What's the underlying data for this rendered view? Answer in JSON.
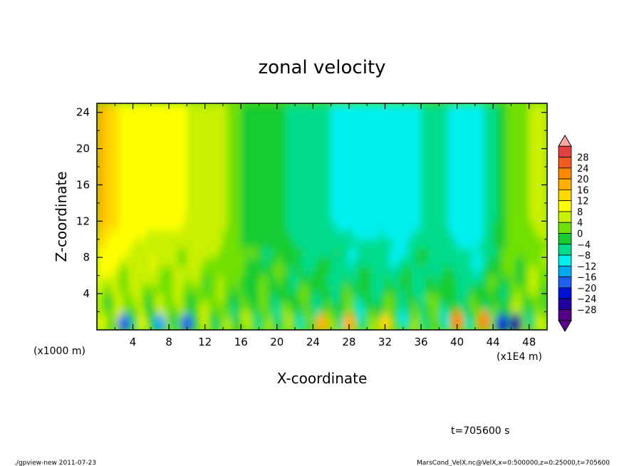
{
  "chart_data": {
    "type": "heatmap",
    "title": "zonal velocity",
    "xlabel": "X-coordinate",
    "ylabel": "Z-coordinate",
    "x_unit_left": "(x1000 m)",
    "x_unit_right": "(x1E4 m)",
    "xlim": [
      0,
      50
    ],
    "ylim": [
      0,
      25
    ],
    "x_ticks": [
      "4",
      "8",
      "12",
      "16",
      "20",
      "24",
      "28",
      "32",
      "36",
      "40",
      "44",
      "48"
    ],
    "y_ticks": [
      "4",
      "8",
      "12",
      "16",
      "20",
      "24"
    ],
    "colorbar": {
      "labels": [
        "28",
        "24",
        "20",
        "16",
        "12",
        "8",
        "4",
        "0",
        "−4",
        "−8",
        "−12",
        "−16",
        "−20",
        "−24",
        "−28"
      ],
      "colors": [
        "#e04040",
        "#f25a20",
        "#ff8800",
        "#ffb000",
        "#ffd800",
        "#ffff00",
        "#c8f000",
        "#70e000",
        "#18cc30",
        "#00dc8c",
        "#00f0f0",
        "#00a8f0",
        "#2060f0",
        "#0010d8",
        "#2000a0",
        "#550088"
      ],
      "top_color": "#ffa8a8",
      "bottom_color": "#5a0090"
    },
    "field_profile": {
      "x": [
        0,
        2,
        4,
        6,
        8,
        10,
        12,
        14,
        16,
        18,
        20,
        22,
        24,
        26,
        28,
        30,
        32,
        34,
        36,
        38,
        40,
        42,
        44,
        46,
        48,
        50
      ],
      "upper_level_velocity": [
        18,
        13,
        10,
        9,
        9,
        8,
        6,
        5,
        0,
        -2,
        -3,
        -5,
        -6,
        -8,
        -9,
        -10,
        -9,
        -11,
        -8,
        -6,
        -10,
        -12,
        -5,
        2,
        4,
        5
      ],
      "near_surface_extremes": [
        {
          "x": 3,
          "z": 0.7,
          "value": -16
        },
        {
          "x": 7,
          "z": 0.7,
          "value": -12
        },
        {
          "x": 10,
          "z": 0.7,
          "value": -16
        },
        {
          "x": 25,
          "z": 0.7,
          "value": 20
        },
        {
          "x": 28,
          "z": 0.7,
          "value": 18
        },
        {
          "x": 32,
          "z": 0.7,
          "value": 16
        },
        {
          "x": 40,
          "z": 1.0,
          "value": 24
        },
        {
          "x": 43,
          "z": 1.0,
          "value": 22
        },
        {
          "x": 45,
          "z": 0.7,
          "value": -20
        },
        {
          "x": 46.5,
          "z": 0.7,
          "value": -24
        }
      ]
    }
  },
  "annotations": {
    "time": "t=705600 s",
    "footer_left": "./gpview-new   2011-07-23",
    "footer_right": "MarsCond_VelX.nc@VelX,x=0:500000,z=0:25000,t=705600"
  }
}
